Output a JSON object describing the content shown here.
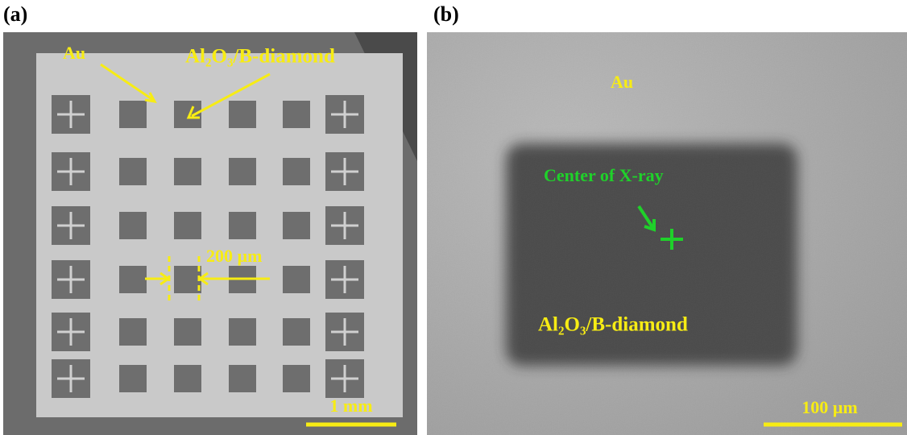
{
  "panels": [
    {
      "label": "(a)",
      "annotations": [
        "Au",
        "Al₂O₃/B-diamond",
        "200 µm"
      ],
      "scale_bar": "1 mm"
    },
    {
      "label": "(b)",
      "annotations": [
        "Au",
        "Center of X-ray",
        "Al₂O₃/B-diamond"
      ],
      "scale_bar": "100 µm"
    }
  ]
}
